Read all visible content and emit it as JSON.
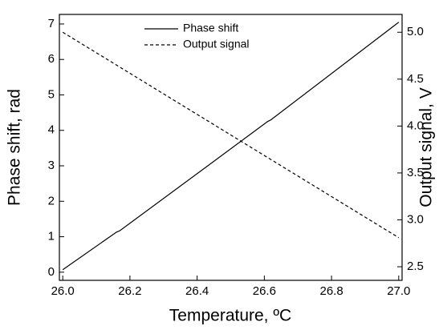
{
  "chart_data": {
    "type": "line",
    "xlabel": "Temperature, ºC",
    "ylabel": "Phase shift, rad",
    "y2label": "Output signal, V",
    "x": [
      26.0,
      26.16,
      26.17,
      26.61,
      26.62,
      27.0
    ],
    "series": [
      {
        "name": "Phase shift",
        "color": "#000000",
        "linestyle": "solid",
        "axis": "y",
        "values": [
          0.07,
          1.13,
          1.17,
          4.25,
          4.3,
          7.05
        ]
      },
      {
        "name": "Output signal",
        "color": "#000000",
        "linestyle": "dashed",
        "axis": "y2",
        "values": [
          5.0,
          4.65,
          4.628,
          3.664,
          3.642,
          2.81
        ]
      }
    ],
    "xlim": [
      25.99,
      27.01
    ],
    "xticks": [
      {
        "value": 26,
        "label": "26.0"
      },
      26.2,
      26.4,
      26.6,
      26.8,
      {
        "value": 27,
        "label": "27.0"
      }
    ],
    "ylim": [
      -0.23,
      7.27
    ],
    "yticks": [
      0,
      1,
      2,
      3,
      4,
      5,
      6,
      7
    ],
    "y2lim": [
      2.355,
      5.19
    ],
    "y2ticks": [
      2.5,
      {
        "value": 3,
        "label": "3.0"
      },
      3.5,
      {
        "value": 4,
        "label": "4.0"
      },
      4.5,
      {
        "value": 5,
        "label": "5.0"
      }
    ],
    "legend": "top"
  }
}
